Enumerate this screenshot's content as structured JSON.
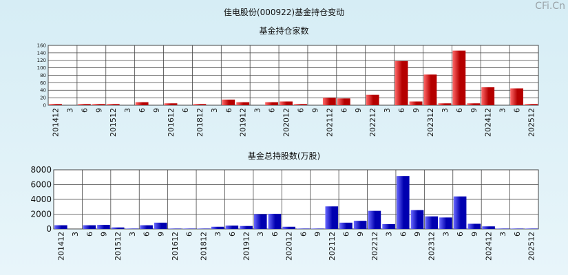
{
  "page": {
    "title": "佳电股份(000922)基金持仓变动",
    "watermark": "CFi.Cn"
  },
  "colors": {
    "plot_bg": "#ffffff",
    "grid": "#444444",
    "red_bar_light": "#ff6a6a",
    "red_bar_dark": "#b50000",
    "blue_bar_light": "#6a6aff",
    "blue_bar_dark": "#0000b0"
  },
  "chart_data": [
    {
      "type": "bar",
      "title": "基金持仓家数",
      "ylim": [
        0,
        160
      ],
      "yticks": [
        0,
        20,
        40,
        60,
        80,
        100,
        120,
        140,
        160
      ],
      "categories": [
        "201412",
        "3",
        "6",
        "9",
        "201512",
        "3",
        "6",
        "9",
        "201612",
        "6",
        "201812",
        "3",
        "6",
        "201912",
        "3",
        "6",
        "202012",
        "6",
        "9",
        "202112",
        "6",
        "9",
        "202212",
        "3",
        "6",
        "9",
        "202312",
        "3",
        "6",
        "9",
        "202412",
        "3",
        "6",
        "202512"
      ],
      "values": [
        3,
        0,
        3,
        3,
        3,
        0,
        8,
        0,
        5,
        0,
        3,
        0,
        15,
        8,
        0,
        8,
        10,
        3,
        0,
        20,
        18,
        0,
        28,
        0,
        118,
        10,
        82,
        5,
        146,
        5,
        48,
        0,
        45,
        3
      ]
    },
    {
      "type": "bar",
      "title": "基金总持股数(万股)",
      "ylim": [
        0,
        8000
      ],
      "yticks": [
        0,
        2000,
        4000,
        6000,
        8000
      ],
      "categories": [
        "201412",
        "3",
        "6",
        "9",
        "201512",
        "3",
        "6",
        "9",
        "201612",
        "6",
        "201812",
        "3",
        "6",
        "201912",
        "3",
        "6",
        "202012",
        "6",
        "9",
        "202112",
        "6",
        "9",
        "202212",
        "3",
        "6",
        "9",
        "202312",
        "3",
        "6",
        "9",
        "202412",
        "3",
        "6",
        "202512"
      ],
      "values": [
        500,
        0,
        500,
        550,
        200,
        50,
        500,
        850,
        50,
        50,
        50,
        300,
        450,
        400,
        2000,
        2050,
        300,
        50,
        50,
        3050,
        850,
        1100,
        2450,
        650,
        7150,
        2550,
        1700,
        1550,
        4400,
        700,
        350,
        50,
        50,
        50
      ]
    }
  ]
}
